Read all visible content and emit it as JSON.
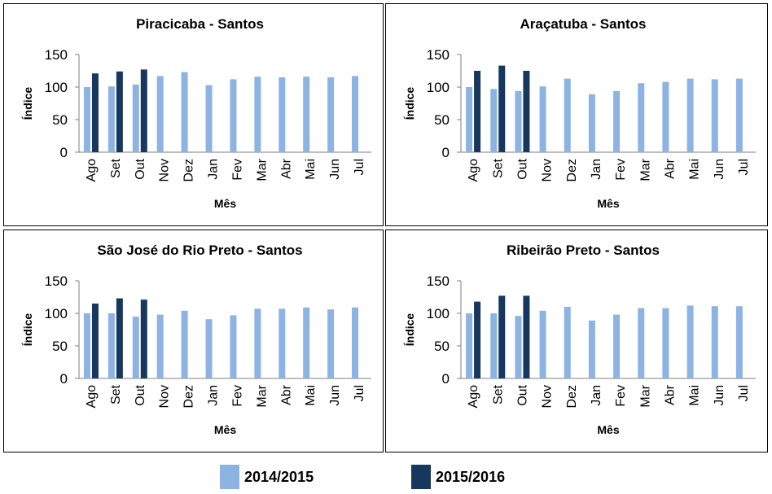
{
  "colors": {
    "series_2014": "#8DB3E2",
    "series_2015": "#17375E"
  },
  "legend": {
    "items": [
      "2014/2015",
      "2015/2016"
    ]
  },
  "chart_data": [
    {
      "type": "bar",
      "title": "Piracicaba - Santos",
      "xlabel": "Mês",
      "ylabel": "Índice",
      "ylim": [
        0,
        150
      ],
      "yticks": [
        "0",
        "50",
        "100",
        "150"
      ],
      "categories": [
        "Ago",
        "Set",
        "Out",
        "Nov",
        "Dez",
        "Jan",
        "Fev",
        "Mar",
        "Abr",
        "Mai",
        "Jun",
        "Jul"
      ],
      "series": [
        {
          "name": "2014/2015",
          "values": [
            100,
            101,
            104,
            117,
            123,
            103,
            112,
            116,
            115,
            116,
            115,
            117
          ]
        },
        {
          "name": "2015/2016",
          "values": [
            121,
            124,
            127,
            null,
            null,
            null,
            null,
            null,
            null,
            null,
            null,
            null
          ]
        }
      ],
      "grid": false,
      "legend": "bottom"
    },
    {
      "type": "bar",
      "title": "Araçatuba - Santos",
      "xlabel": "Mês",
      "ylabel": "Índice",
      "ylim": [
        0,
        150
      ],
      "yticks": [
        "0",
        "50",
        "100",
        "150"
      ],
      "categories": [
        "Ago",
        "Set",
        "Out",
        "Nov",
        "Dez",
        "Jan",
        "Fev",
        "Mar",
        "Abr",
        "Mai",
        "Jun",
        "Jul"
      ],
      "series": [
        {
          "name": "2014/2015",
          "values": [
            100,
            97,
            94,
            101,
            113,
            89,
            94,
            106,
            108,
            113,
            112,
            113
          ]
        },
        {
          "name": "2015/2016",
          "values": [
            125,
            133,
            125,
            null,
            null,
            null,
            null,
            null,
            null,
            null,
            null,
            null
          ]
        }
      ],
      "grid": false,
      "legend": "bottom"
    },
    {
      "type": "bar",
      "title": "São José do Rio Preto - Santos",
      "xlabel": "Mês",
      "ylabel": "Índice",
      "ylim": [
        0,
        150
      ],
      "yticks": [
        "0",
        "50",
        "100",
        "150"
      ],
      "categories": [
        "Ago",
        "Set",
        "Out",
        "Nov",
        "Dez",
        "Jan",
        "Fev",
        "Mar",
        "Abr",
        "Mai",
        "Jun",
        "Jul"
      ],
      "series": [
        {
          "name": "2014/2015",
          "values": [
            100,
            100,
            95,
            98,
            104,
            91,
            97,
            107,
            107,
            109,
            106,
            109
          ]
        },
        {
          "name": "2015/2016",
          "values": [
            115,
            123,
            121,
            null,
            null,
            null,
            null,
            null,
            null,
            null,
            null,
            null
          ]
        }
      ],
      "grid": false,
      "legend": "bottom"
    },
    {
      "type": "bar",
      "title": "Ribeirão Preto - Santos",
      "xlabel": "Mês",
      "ylabel": "Índice",
      "ylim": [
        0,
        150
      ],
      "yticks": [
        "0",
        "50",
        "100",
        "150"
      ],
      "categories": [
        "Ago",
        "Set",
        "Out",
        "Nov",
        "Dez",
        "Jan",
        "Fev",
        "Mar",
        "Abr",
        "Mai",
        "Jun",
        "Jul"
      ],
      "series": [
        {
          "name": "2014/2015",
          "values": [
            100,
            100,
            96,
            104,
            110,
            89,
            98,
            108,
            108,
            112,
            111,
            111
          ]
        },
        {
          "name": "2015/2016",
          "values": [
            118,
            127,
            127,
            null,
            null,
            null,
            null,
            null,
            null,
            null,
            null,
            null
          ]
        }
      ],
      "grid": false,
      "legend": "bottom"
    }
  ]
}
